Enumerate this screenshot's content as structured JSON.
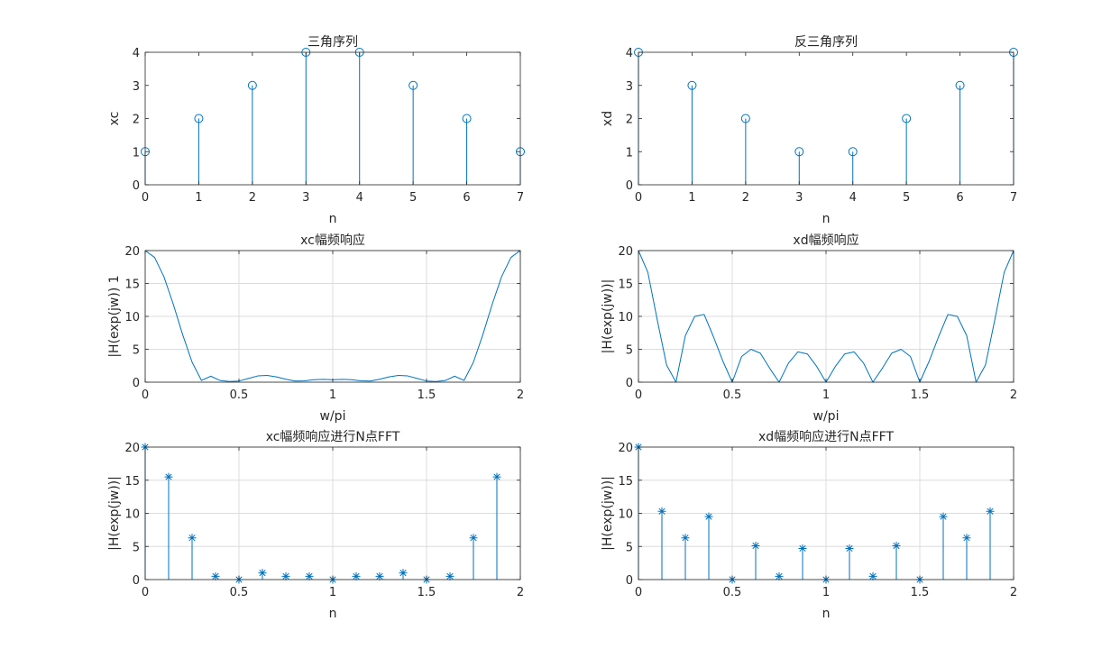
{
  "figure": {
    "background": "#ffffff",
    "series_color": "#0072bd",
    "axis_color": "#262626",
    "grid_color": "#dcdcdc"
  },
  "chart_data": [
    {
      "type": "stem",
      "title": "三角序列",
      "xlabel": "n",
      "ylabel": "xc",
      "xlim": [
        0,
        7
      ],
      "ylim": [
        0,
        4
      ],
      "xticks": [
        0,
        1,
        2,
        3,
        4,
        5,
        6,
        7
      ],
      "xtick_labels": [
        "0",
        "1",
        "2",
        "3",
        "4",
        "5",
        "6",
        "7"
      ],
      "yticks": [
        0,
        1,
        2,
        3,
        4
      ],
      "ytick_labels": [
        "0",
        "1",
        "2",
        "3",
        "4"
      ],
      "grid": false,
      "marker": "circle",
      "x": [
        0,
        1,
        2,
        3,
        4,
        5,
        6,
        7
      ],
      "values": [
        1,
        2,
        3,
        4,
        4,
        3,
        2,
        1
      ]
    },
    {
      "type": "stem",
      "title": "反三角序列",
      "xlabel": "n",
      "ylabel": "xd",
      "xlim": [
        0,
        7
      ],
      "ylim": [
        0,
        4
      ],
      "xticks": [
        0,
        1,
        2,
        3,
        4,
        5,
        6,
        7
      ],
      "xtick_labels": [
        "0",
        "1",
        "2",
        "3",
        "4",
        "5",
        "6",
        "7"
      ],
      "yticks": [
        0,
        1,
        2,
        3,
        4
      ],
      "ytick_labels": [
        "0",
        "1",
        "2",
        "3",
        "4"
      ],
      "grid": false,
      "marker": "circle",
      "x": [
        0,
        1,
        2,
        3,
        4,
        5,
        6,
        7
      ],
      "values": [
        4,
        3,
        2,
        1,
        1,
        2,
        3,
        4
      ]
    },
    {
      "type": "line",
      "title": "xc幅频响应",
      "xlabel": "w/pi",
      "ylabel": "|H(exp(jw)) 1",
      "xlim": [
        0,
        2
      ],
      "ylim": [
        0,
        20
      ],
      "xticks": [
        0,
        0.5,
        1,
        1.5,
        2
      ],
      "xtick_labels": [
        "0",
        "0.5",
        "1",
        "1.5",
        "2"
      ],
      "yticks": [
        0,
        5,
        10,
        15,
        20
      ],
      "ytick_labels": [
        "0",
        "5",
        "10",
        "15",
        "20"
      ],
      "grid": true,
      "x": [
        0,
        0.05,
        0.1,
        0.15,
        0.2,
        0.25,
        0.3,
        0.35,
        0.4,
        0.45,
        0.5,
        0.55,
        0.6,
        0.65,
        0.7,
        0.75,
        0.8,
        0.85,
        0.9,
        0.95,
        1,
        1.05,
        1.1,
        1.15,
        1.2,
        1.25,
        1.3,
        1.35,
        1.4,
        1.45,
        1.5,
        1.55,
        1.6,
        1.65,
        1.7,
        1.75,
        1.8,
        1.85,
        1.9,
        1.95,
        2
      ],
      "values": [
        20,
        18.96,
        16.02,
        11.83,
        7.2,
        3.05,
        0.26,
        0.91,
        0.25,
        0.11,
        0.18,
        0.56,
        0.95,
        1.03,
        0.8,
        0.44,
        0.17,
        0.2,
        0.37,
        0.43,
        0.38,
        0.43,
        0.37,
        0.2,
        0.17,
        0.44,
        0.8,
        1.03,
        0.95,
        0.56,
        0.18,
        0.11,
        0.25,
        0.91,
        0.26,
        3.05,
        7.2,
        11.83,
        16.02,
        18.96,
        20
      ]
    },
    {
      "type": "line",
      "title": "xd幅频响应",
      "xlabel": "w/pi",
      "ylabel": "|H(exp(jw))|",
      "xlim": [
        0,
        2
      ],
      "ylim": [
        0,
        20
      ],
      "xticks": [
        0,
        0.5,
        1,
        1.5,
        2
      ],
      "xtick_labels": [
        "0",
        "0.5",
        "1",
        "1.5",
        "2"
      ],
      "yticks": [
        0,
        5,
        10,
        15,
        20
      ],
      "ytick_labels": [
        "0",
        "5",
        "10",
        "15",
        "20"
      ],
      "grid": true,
      "x": [
        0,
        0.05,
        0.1,
        0.15,
        0.2,
        0.25,
        0.3,
        0.35,
        0.4,
        0.45,
        0.5,
        0.55,
        0.6,
        0.65,
        0.7,
        0.75,
        0.8,
        0.85,
        0.9,
        0.95,
        1,
        1.05,
        1.1,
        1.15,
        1.2,
        1.25,
        1.3,
        1.35,
        1.4,
        1.45,
        1.5,
        1.55,
        1.6,
        1.65,
        1.7,
        1.75,
        1.8,
        1.85,
        1.9,
        1.95,
        2
      ],
      "values": [
        20,
        16.7,
        9.5,
        2.6,
        0,
        7.07,
        10.0,
        10.3,
        6.9,
        3.2,
        0,
        3.9,
        5.0,
        4.4,
        2.1,
        0,
        2.9,
        4.6,
        4.3,
        2.4,
        0,
        2.4,
        4.3,
        4.6,
        2.9,
        0,
        2.1,
        4.4,
        5.0,
        3.9,
        0,
        3.2,
        6.9,
        10.3,
        10.0,
        7.07,
        0,
        2.6,
        9.5,
        16.7,
        20
      ]
    },
    {
      "type": "stem",
      "title": "xc幅频响应进行N点FFT",
      "xlabel": "n",
      "ylabel": "|H(exp(jw))|",
      "xlim": [
        0,
        2
      ],
      "ylim": [
        0,
        20
      ],
      "xticks": [
        0,
        0.5,
        1,
        1.5,
        2
      ],
      "xtick_labels": [
        "0",
        "0.5",
        "1",
        "1.5",
        "2"
      ],
      "yticks": [
        0,
        5,
        10,
        15,
        20
      ],
      "ytick_labels": [
        "0",
        "5",
        "10",
        "15",
        "20"
      ],
      "grid": true,
      "marker": "asterisk",
      "x": [
        0,
        0.125,
        0.25,
        0.375,
        0.5,
        0.625,
        0.75,
        0.875,
        1,
        1.125,
        1.25,
        1.375,
        1.5,
        1.625,
        1.75,
        1.875
      ],
      "values": [
        20,
        15.5,
        6.3,
        0.5,
        0,
        1.0,
        0.5,
        0.5,
        0,
        0.5,
        0.5,
        1.0,
        0,
        0.5,
        6.3,
        15.5
      ]
    },
    {
      "type": "stem",
      "title": "xd幅频响应进行N点FFT",
      "xlabel": "n",
      "ylabel": "|H(exp(jw))|",
      "xlim": [
        0,
        2
      ],
      "ylim": [
        0,
        20
      ],
      "xticks": [
        0,
        0.5,
        1,
        1.5,
        2
      ],
      "xtick_labels": [
        "0",
        "0.5",
        "1",
        "1.5",
        "2"
      ],
      "yticks": [
        0,
        5,
        10,
        15,
        20
      ],
      "ytick_labels": [
        "0",
        "5",
        "10",
        "15",
        "20"
      ],
      "grid": true,
      "marker": "asterisk",
      "x": [
        0,
        0.125,
        0.25,
        0.375,
        0.5,
        0.625,
        0.75,
        0.875,
        1,
        1.125,
        1.25,
        1.375,
        1.5,
        1.625,
        1.75,
        1.875
      ],
      "values": [
        20,
        10.3,
        6.3,
        9.5,
        0,
        5.1,
        0.5,
        4.7,
        0,
        4.7,
        0.5,
        5.1,
        0,
        9.5,
        6.3,
        10.3
      ]
    }
  ]
}
